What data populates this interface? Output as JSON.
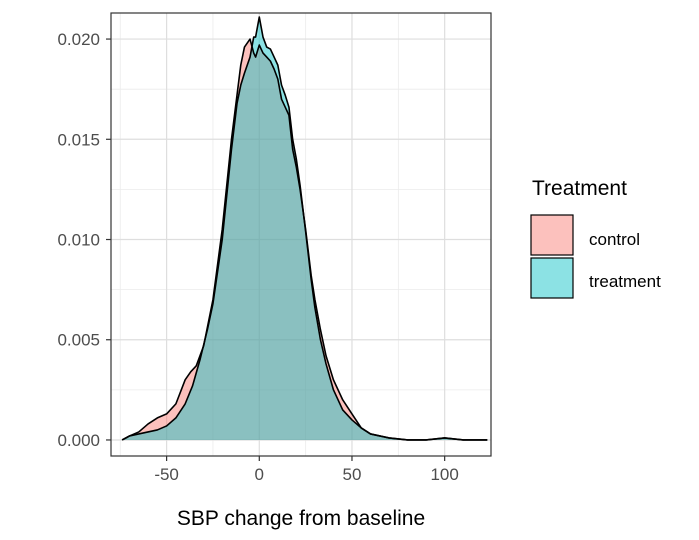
{
  "chart_data": {
    "type": "area",
    "xlabel": "SBP change from baseline",
    "ylabel": "",
    "xlim": [
      -80,
      125
    ],
    "ylim": [
      -0.0008,
      0.0213
    ],
    "x_ticks": [
      -50,
      0,
      50,
      100
    ],
    "y_ticks": [
      0.0,
      0.005,
      0.01,
      0.015,
      0.02
    ],
    "x_tick_labels": [
      "-50",
      "0",
      "50",
      "100"
    ],
    "y_tick_labels": [
      "0.000",
      "0.005",
      "0.010",
      "0.015",
      "0.020"
    ],
    "grid": true,
    "legend": {
      "title": "Treatment",
      "placement": "right",
      "entries": [
        {
          "label": "control",
          "color": "#F8766D"
        },
        {
          "label": "treatment",
          "color": "#00BFC4"
        }
      ]
    },
    "series": [
      {
        "name": "control",
        "color": "#F8766D",
        "x": [
          -74,
          -70,
          -65,
          -60,
          -55,
          -50,
          -45,
          -40,
          -37,
          -34,
          -30,
          -25,
          -20,
          -15,
          -10,
          -8,
          -5,
          -3,
          -2,
          0,
          2,
          4,
          6,
          8,
          10,
          12,
          14,
          16,
          18,
          20,
          22,
          25,
          28,
          30,
          33,
          36,
          40,
          45,
          50,
          55,
          60,
          65,
          70,
          80,
          90,
          100,
          110,
          123
        ],
        "y": [
          0.0,
          0.0002,
          0.0004,
          0.0008,
          0.0011,
          0.0013,
          0.0018,
          0.003,
          0.0034,
          0.0037,
          0.0047,
          0.007,
          0.0105,
          0.015,
          0.0187,
          0.0196,
          0.02,
          0.0193,
          0.0191,
          0.0197,
          0.0193,
          0.0191,
          0.0189,
          0.0185,
          0.018,
          0.017,
          0.0166,
          0.0162,
          0.0145,
          0.0136,
          0.0125,
          0.0105,
          0.0082,
          0.007,
          0.0055,
          0.0042,
          0.003,
          0.002,
          0.0013,
          0.0006,
          0.0003,
          0.0002,
          0.0001,
          0.0,
          0.0,
          0.0001,
          0.0,
          0.0
        ]
      },
      {
        "name": "treatment",
        "color": "#00BFC4",
        "x": [
          -74,
          -70,
          -65,
          -60,
          -55,
          -50,
          -45,
          -40,
          -36,
          -32,
          -28,
          -25,
          -20,
          -15,
          -12,
          -10,
          -8,
          -5,
          -3,
          -2,
          0,
          2,
          4,
          6,
          8,
          10,
          12,
          14,
          16,
          18,
          20,
          22,
          25,
          28,
          30,
          33,
          36,
          40,
          45,
          50,
          55,
          60,
          65,
          70,
          80,
          90,
          100,
          110,
          123
        ],
        "y": [
          0.0,
          0.0002,
          0.0003,
          0.0004,
          0.0005,
          0.0007,
          0.0011,
          0.0018,
          0.0027,
          0.004,
          0.0055,
          0.0068,
          0.01,
          0.0145,
          0.0168,
          0.0177,
          0.0183,
          0.0191,
          0.0201,
          0.0201,
          0.0211,
          0.0201,
          0.0196,
          0.0195,
          0.0191,
          0.0187,
          0.0177,
          0.0172,
          0.0166,
          0.015,
          0.014,
          0.0127,
          0.0104,
          0.008,
          0.0066,
          0.005,
          0.0038,
          0.0025,
          0.0015,
          0.001,
          0.0006,
          0.0003,
          0.0002,
          0.0001,
          0.0,
          0.0,
          0.0001,
          0.0,
          0.0
        ]
      }
    ]
  }
}
